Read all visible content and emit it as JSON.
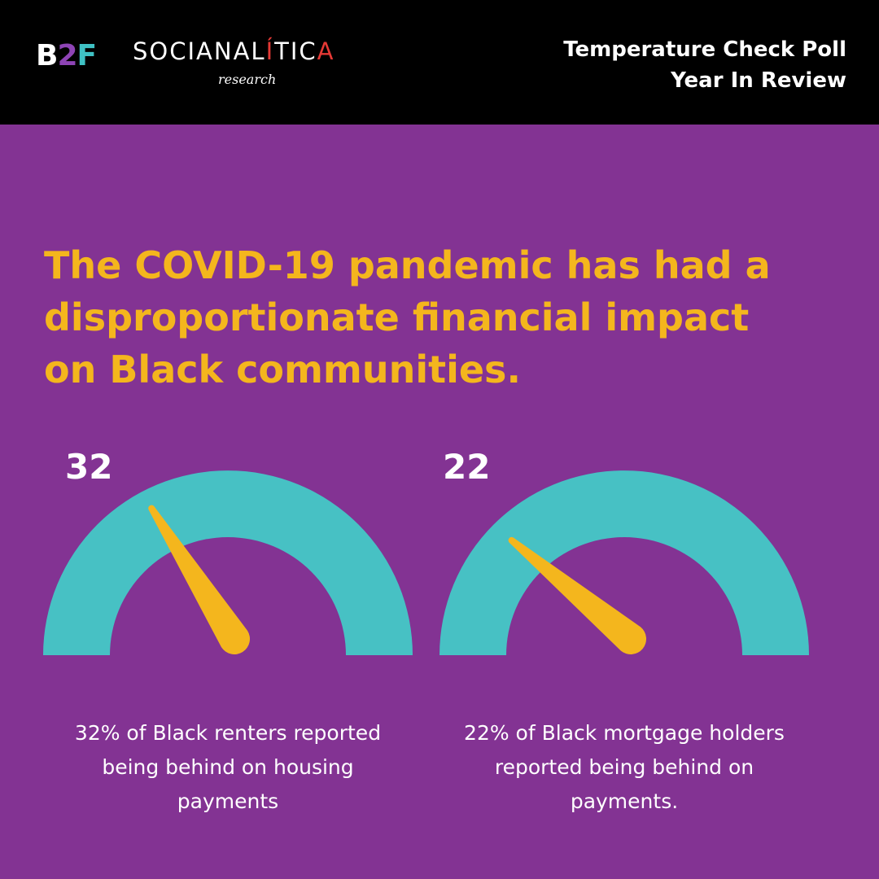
{
  "header": {
    "logo_b2f": {
      "b": "B",
      "two": "2",
      "f": "F"
    },
    "logo_socio": {
      "pre": "SOCI",
      "mid": "ANAL",
      "acc": "Í",
      "post": "TIC",
      "end": "A"
    },
    "logo_research": "research",
    "title_line1": "Temperature Check Poll",
    "title_line2": "Year In Review"
  },
  "headline": {
    "line1": "The COVID-19 pandemic has had a",
    "line2": "disproportionate financial impact",
    "line3": "on Black communities."
  },
  "gauges": [
    {
      "value_label": "32",
      "percent": 32,
      "caption": [
        "32% of Black renters reported",
        "being behind on housing",
        "payments"
      ]
    },
    {
      "value_label": "22",
      "percent": 22,
      "caption": [
        "22% of Black mortgage holders",
        "reported being behind on",
        "payments."
      ]
    }
  ],
  "colors": {
    "background": "#833393",
    "header": "#000000",
    "accent_yellow": "#f4b61d",
    "gauge_teal": "#47c1c4",
    "text_white": "#ffffff"
  }
}
